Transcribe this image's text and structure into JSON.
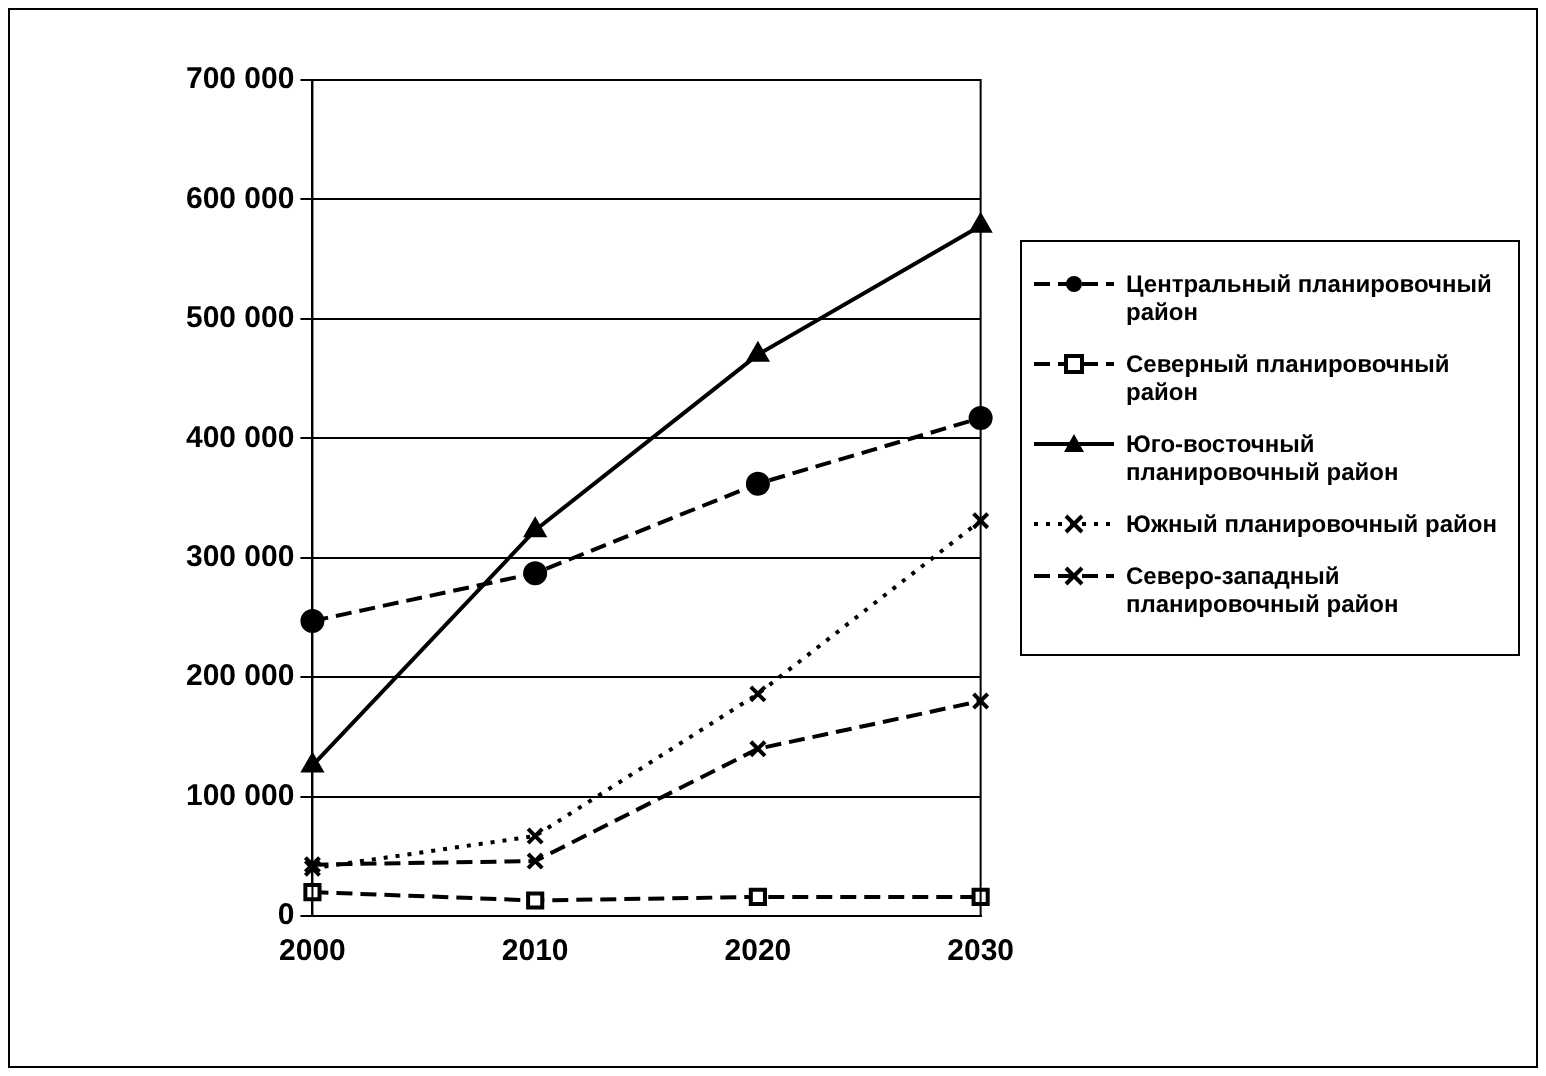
{
  "chart_data": {
    "type": "line",
    "x": [
      2000,
      2010,
      2020,
      2030
    ],
    "xlim": [
      2000,
      2030
    ],
    "xticks": [
      2000,
      2010,
      2020,
      2030
    ],
    "ylim": [
      0,
      700000
    ],
    "yticks": [
      {
        "value": 0,
        "label": "0"
      },
      {
        "value": 100000,
        "label": "100 000"
      },
      {
        "value": 200000,
        "label": "200 000"
      },
      {
        "value": 300000,
        "label": "300 000"
      },
      {
        "value": 400000,
        "label": "400 000"
      },
      {
        "value": 500000,
        "label": "500 000"
      },
      {
        "value": 600000,
        "label": "600 000"
      },
      {
        "value": 700000,
        "label": "700 000"
      }
    ],
    "grid": "y",
    "legend": "right",
    "series": [
      {
        "name": "Центральный планировочный район",
        "color": "#000000",
        "marker": "circle",
        "line_style": "dashed",
        "values": [
          247000,
          287000,
          362000,
          417000
        ]
      },
      {
        "name": "Северный планировочный район",
        "color": "#000000",
        "marker": "square",
        "line_style": "dashed",
        "values": [
          20000,
          13000,
          16000,
          16000
        ]
      },
      {
        "name": "Юго-восточный планировочный район",
        "color": "#000000",
        "marker": "triangle",
        "line_style": "solid",
        "values": [
          126000,
          323000,
          470000,
          578000
        ]
      },
      {
        "name": "Южный планировочный район",
        "color": "#000000",
        "marker": "cross",
        "line_style": "dotted",
        "values": [
          40000,
          67000,
          186000,
          331000
        ]
      },
      {
        "name": "Северо-западный планировочный район",
        "color": "#000000",
        "marker": "cross",
        "line_style": "dashed",
        "values": [
          43000,
          46000,
          140000,
          180000
        ]
      }
    ]
  }
}
